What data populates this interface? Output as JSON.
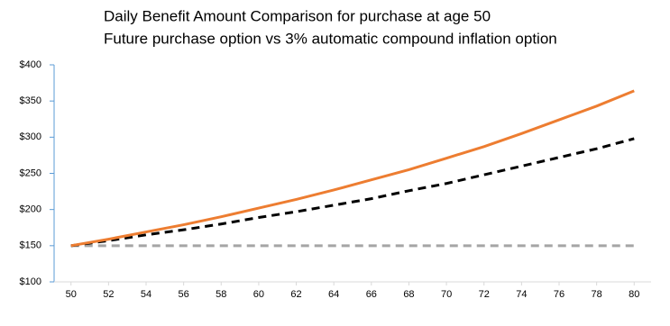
{
  "chart_data": {
    "type": "line",
    "title": "Daily Benefit Amount Comparison for purchase at age 50",
    "subtitle": "Future purchase option vs 3% automatic compound inflation option",
    "x": [
      50,
      52,
      54,
      56,
      58,
      60,
      62,
      64,
      66,
      68,
      70,
      72,
      74,
      76,
      78,
      80
    ],
    "series": [
      {
        "color": "#ed7d31",
        "dash": "none",
        "values": [
          150,
          159,
          169,
          179,
          190,
          202,
          214,
          227,
          241,
          255,
          271,
          287,
          305,
          324,
          343,
          364
        ]
      },
      {
        "color": "#000000",
        "dash": "dashed",
        "values": [
          150,
          157,
          165,
          172,
          180,
          189,
          197,
          206,
          215,
          226,
          236,
          248,
          260,
          272,
          284,
          298
        ]
      },
      {
        "color": "#a5a5a5",
        "dash": "dashed",
        "values": [
          150,
          150,
          150,
          150,
          150,
          150,
          150,
          150,
          150,
          150,
          150,
          150,
          150,
          150,
          150,
          150
        ]
      }
    ],
    "xlim": [
      49.1,
      80.9
    ],
    "xticks": [
      50,
      52,
      54,
      56,
      58,
      60,
      62,
      64,
      66,
      68,
      70,
      72,
      74,
      76,
      78,
      80
    ],
    "ylim": [
      100,
      400
    ],
    "yticks": [
      {
        "value": 100,
        "label": "$100"
      },
      {
        "value": 150,
        "label": "$150"
      },
      {
        "value": 200,
        "label": "$200"
      },
      {
        "value": 250,
        "label": "$250"
      },
      {
        "value": 300,
        "label": "$300"
      },
      {
        "value": 350,
        "label": "$350"
      },
      {
        "value": 400,
        "label": "$400"
      }
    ],
    "grid": false
  }
}
